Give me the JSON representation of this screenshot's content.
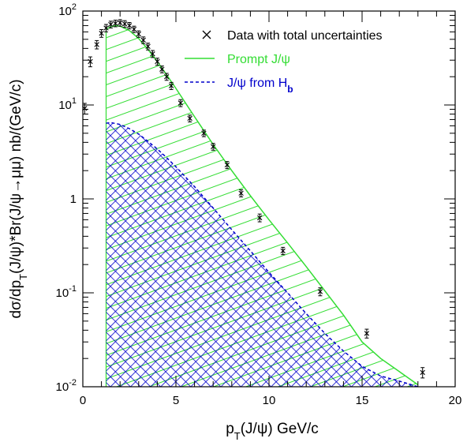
{
  "chart_data": {
    "type": "line",
    "xlabel": "p_T(J/ψ) GeV/c",
    "ylabel": "dσ/dp_T(J/ψ)*Br(J/ψ→μμ) nb/(GeV/c)",
    "xlim": [
      0,
      20
    ],
    "ylim": [
      0.01,
      100
    ],
    "yscale": "log",
    "grid": false,
    "legend_placement": "top-right",
    "x_ticks": [
      {
        "value": 0,
        "label": "0"
      },
      {
        "value": 5,
        "label": "5"
      },
      {
        "value": 10,
        "label": "10"
      },
      {
        "value": 15,
        "label": "15"
      },
      {
        "value": 20,
        "label": "20"
      }
    ],
    "y_ticks": [
      {
        "value": 0.01,
        "base": "10",
        "exp": "-2"
      },
      {
        "value": 0.1,
        "base": "10",
        "exp": "-1"
      },
      {
        "value": 1,
        "base": "1",
        "exp": ""
      },
      {
        "value": 10,
        "base": "10",
        "exp": "1"
      },
      {
        "value": 100,
        "base": "10",
        "exp": "2"
      }
    ],
    "legend": [
      {
        "label": "Data with total uncertainties",
        "color": "#000000",
        "marker": "cross"
      },
      {
        "label": "Prompt J/ψ",
        "color": "#33dd33",
        "marker": "line"
      },
      {
        "label": "J/ψ from H",
        "sub": "b",
        "color": "#0000cc",
        "marker": "dashed"
      }
    ],
    "series": [
      {
        "name": "Data with total uncertainties",
        "kind": "points",
        "color": "#000000",
        "points": [
          [
            0.1,
            9.2,
            1.2
          ],
          [
            0.4,
            29,
            3.5
          ],
          [
            0.75,
            44,
            4.5
          ],
          [
            1.0,
            58,
            5.5
          ],
          [
            1.25,
            66,
            6
          ],
          [
            1.5,
            72,
            6
          ],
          [
            1.75,
            74,
            6
          ],
          [
            2.0,
            75,
            6
          ],
          [
            2.25,
            73,
            6
          ],
          [
            2.5,
            70,
            5.5
          ],
          [
            2.75,
            64,
            5
          ],
          [
            3.0,
            57,
            4.5
          ],
          [
            3.25,
            49,
            4
          ],
          [
            3.5,
            42,
            3.5
          ],
          [
            3.75,
            35,
            3
          ],
          [
            4.0,
            29,
            2.5
          ],
          [
            4.25,
            24,
            2
          ],
          [
            4.5,
            20,
            1.7
          ],
          [
            4.75,
            16,
            1.4
          ],
          [
            5.25,
            10.5,
            0.9
          ],
          [
            5.75,
            7.2,
            0.6
          ],
          [
            6.5,
            5.0,
            0.4
          ],
          [
            7.0,
            3.6,
            0.3
          ],
          [
            7.75,
            2.3,
            0.2
          ],
          [
            8.5,
            1.15,
            0.1
          ],
          [
            9.5,
            0.63,
            0.06
          ],
          [
            10.75,
            0.28,
            0.025
          ],
          [
            12.75,
            0.103,
            0.01
          ],
          [
            15.25,
            0.037,
            0.004
          ],
          [
            18.25,
            0.0142,
            0.0018
          ]
        ]
      },
      {
        "name": "Prompt J/ψ",
        "kind": "band",
        "color": "#33dd33",
        "x": [
          1.25,
          1.5,
          1.75,
          2.0,
          2.5,
          3.0,
          3.5,
          4.0,
          4.5,
          5.0,
          6.0,
          7.0,
          8.0,
          9.0,
          10.0,
          11.0,
          12.0,
          13.0,
          14.0,
          15.0,
          16.0,
          17.0,
          18.0
        ],
        "y": [
          64,
          68,
          70,
          69,
          62,
          51,
          39,
          29,
          21,
          15,
          7.5,
          3.8,
          2.0,
          1.08,
          0.6,
          0.34,
          0.19,
          0.105,
          0.058,
          0.03,
          0.02,
          0.0145,
          0.0105
        ]
      },
      {
        "name": "J/ψ from H_b",
        "kind": "band",
        "color": "#0000cc",
        "x": [
          1.25,
          1.5,
          2.0,
          2.5,
          3.0,
          3.5,
          4.0,
          4.5,
          5.0,
          6.0,
          7.0,
          8.0,
          9.0,
          10.0,
          11.0,
          12.0,
          13.0,
          14.0,
          15.0,
          16.0,
          17.0,
          18.0
        ],
        "y": [
          6.4,
          6.5,
          6.2,
          5.6,
          4.9,
          4.1,
          3.4,
          2.75,
          2.2,
          1.35,
          0.8,
          0.47,
          0.28,
          0.165,
          0.1,
          0.06,
          0.037,
          0.024,
          0.0165,
          0.013,
          0.0115,
          0.01
        ]
      }
    ]
  }
}
